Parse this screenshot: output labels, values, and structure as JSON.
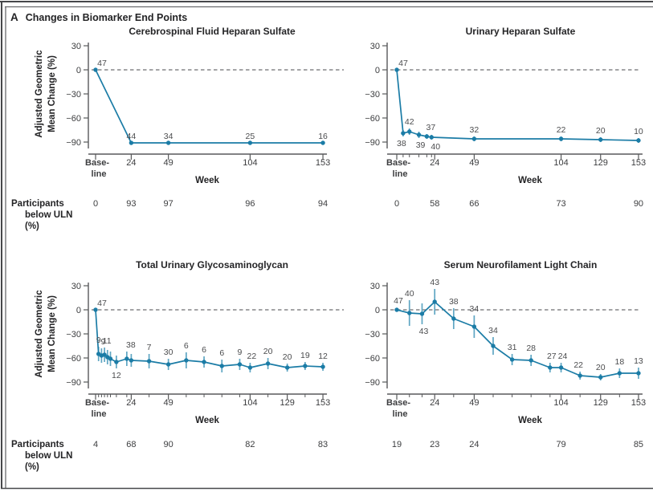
{
  "figure": {
    "panel_letter": "A",
    "title": "Changes in Biomarker End Points"
  },
  "colors": {
    "series_line": "#1b7ca6",
    "error_bar": "#5fa6c3",
    "dashed_zero_line": "#6d6e71",
    "axis": "#58595b",
    "text": "#2d2d2f"
  },
  "axis_labels": {
    "y_line1": "Adjusted Geometric",
    "y_line2": "Mean Change (%)",
    "x": "Week",
    "baseline_lines": [
      "Base-",
      "line"
    ]
  },
  "participants_label_lines": [
    "Participants",
    "below ULN",
    "(%)"
  ],
  "chart_data": [
    {
      "type": "line",
      "title": "Cerebrospinal Fluid Heparan Sulfate",
      "xlabel": "Week",
      "ylabel": "Adjusted Geometric Mean Change (%)",
      "ylim": [
        -90,
        30
      ],
      "y_ticks": [
        30,
        0,
        -30,
        -60,
        -90
      ],
      "x_major_ticks": [
        {
          "week": 0,
          "label": "Base-line"
        },
        {
          "week": 24,
          "label": "24"
        },
        {
          "week": 49,
          "label": "49"
        },
        {
          "week": 104,
          "label": "104"
        },
        {
          "week": 153,
          "label": "153"
        }
      ],
      "x_minor_tick_weeks": [],
      "points": [
        {
          "week": 0,
          "pct": 0,
          "n": "47",
          "n_pos": "above",
          "dx": 8
        },
        {
          "week": 24,
          "pct": -91,
          "n": "44",
          "n_pos": "above"
        },
        {
          "week": 49,
          "pct": -91,
          "n": "34",
          "n_pos": "above"
        },
        {
          "week": 104,
          "pct": -91,
          "n": "25",
          "n_pos": "above"
        },
        {
          "week": 153,
          "pct": -91,
          "n": "16",
          "n_pos": "above"
        }
      ],
      "participants_below_uln_pct": [
        {
          "week": 0,
          "value": "0"
        },
        {
          "week": 24,
          "value": "93"
        },
        {
          "week": 49,
          "value": "97"
        },
        {
          "week": 104,
          "value": "96"
        },
        {
          "week": 153,
          "value": "94"
        }
      ]
    },
    {
      "type": "line",
      "title": "Urinary Heparan Sulfate",
      "xlabel": "Week",
      "ylabel": "Adjusted Geometric Mean Change (%)",
      "ylim": [
        -90,
        30
      ],
      "y_ticks": [
        30,
        0,
        -30,
        -60,
        -90
      ],
      "x_major_ticks": [
        {
          "week": 0,
          "label": "Base-line"
        },
        {
          "week": 24,
          "label": "24"
        },
        {
          "week": 49,
          "label": "49"
        },
        {
          "week": 104,
          "label": "104"
        },
        {
          "week": 129,
          "label": "129"
        },
        {
          "week": 153,
          "label": "153"
        }
      ],
      "x_minor_tick_weeks": [
        4,
        8,
        14,
        19,
        22
      ],
      "points": [
        {
          "week": 0,
          "pct": 0,
          "n": "47",
          "n_pos": "above",
          "dx": 8
        },
        {
          "week": 4,
          "pct": -79,
          "err": 4,
          "n": "38",
          "n_pos": "below",
          "dx": -2
        },
        {
          "week": 8,
          "pct": -77,
          "err": 4,
          "n": "42",
          "n_pos": "above"
        },
        {
          "week": 14,
          "pct": -81,
          "err": 4,
          "n": "39",
          "n_pos": "below",
          "dx": 2
        },
        {
          "week": 19,
          "pct": -83,
          "err": 3,
          "n": "37",
          "n_pos": "above",
          "dx": 5
        },
        {
          "week": 22,
          "pct": -84,
          "err": 3,
          "n": "40",
          "n_pos": "below",
          "dx": 5
        },
        {
          "week": 49,
          "pct": -86,
          "err": 3,
          "n": "32",
          "n_pos": "above"
        },
        {
          "week": 104,
          "pct": -86,
          "err": 3,
          "n": "22",
          "n_pos": "above"
        },
        {
          "week": 129,
          "pct": -87,
          "err": 3,
          "n": "20",
          "n_pos": "above"
        },
        {
          "week": 153,
          "pct": -88,
          "err": 3,
          "n": "10",
          "n_pos": "above"
        }
      ],
      "participants_below_uln_pct": [
        {
          "week": 0,
          "value": "0"
        },
        {
          "week": 24,
          "value": "58"
        },
        {
          "week": 49,
          "value": "66"
        },
        {
          "week": 104,
          "value": "73"
        },
        {
          "week": 153,
          "value": "90"
        }
      ]
    },
    {
      "type": "line",
      "title": "Total Urinary Glycosaminoglycan",
      "xlabel": "Week",
      "ylabel": "Adjusted Geometric Mean Change (%)",
      "ylim": [
        -90,
        30
      ],
      "y_ticks": [
        30,
        0,
        -30,
        -60,
        -90
      ],
      "x_major_ticks": [
        {
          "week": 0,
          "label": "Base-line"
        },
        {
          "week": 24,
          "label": "24"
        },
        {
          "week": 49,
          "label": "49"
        },
        {
          "week": 104,
          "label": "104"
        },
        {
          "week": 129,
          "label": "129"
        },
        {
          "week": 153,
          "label": "153"
        }
      ],
      "x_minor_tick_weeks": [
        2,
        4,
        6,
        8,
        10,
        14,
        21,
        36,
        61,
        73,
        85,
        97,
        116,
        141
      ],
      "points": [
        {
          "week": 0,
          "pct": 0,
          "n": "47",
          "n_pos": "above",
          "dx": 8
        },
        {
          "week": 2,
          "pct": -55,
          "err": 9,
          "n": "9",
          "n_pos": "above"
        },
        {
          "week": 4,
          "pct": -57,
          "err": 9,
          "n": "9",
          "n_pos": "above",
          "dx": 2
        },
        {
          "week": 6,
          "pct": -56,
          "err": 9,
          "n": "11",
          "n_pos": "above",
          "dx": 3
        },
        {
          "week": 8,
          "pct": -59,
          "err": 9
        },
        {
          "week": 10,
          "pct": -61,
          "err": 9
        },
        {
          "week": 14,
          "pct": -65,
          "err": 8,
          "n": "12",
          "n_pos": "below"
        },
        {
          "week": 21,
          "pct": -61,
          "err": 9,
          "n": "38",
          "n_pos": "above",
          "dx": 5
        },
        {
          "week": 24,
          "pct": -63,
          "err": 8
        },
        {
          "week": 36,
          "pct": -64,
          "err": 9,
          "n": "7",
          "n_pos": "above"
        },
        {
          "week": 49,
          "pct": -68,
          "err": 7,
          "n": "30",
          "n_pos": "above"
        },
        {
          "week": 61,
          "pct": -63,
          "err": 10,
          "n": "6",
          "n_pos": "above"
        },
        {
          "week": 73,
          "pct": -65,
          "err": 7,
          "n": "6",
          "n_pos": "above"
        },
        {
          "week": 85,
          "pct": -70,
          "err": 8,
          "n": "6",
          "n_pos": "above"
        },
        {
          "week": 97,
          "pct": -68,
          "err": 7,
          "n": "9",
          "n_pos": "above"
        },
        {
          "week": 104,
          "pct": -72,
          "err": 6,
          "n": "22",
          "n_pos": "above",
          "dx": 2
        },
        {
          "week": 116,
          "pct": -67,
          "err": 7,
          "n": "20",
          "n_pos": "above"
        },
        {
          "week": 129,
          "pct": -72,
          "err": 5,
          "n": "20",
          "n_pos": "above"
        },
        {
          "week": 141,
          "pct": -70,
          "err": 5,
          "n": "19",
          "n_pos": "above"
        },
        {
          "week": 153,
          "pct": -71,
          "err": 5,
          "n": "12",
          "n_pos": "above"
        }
      ],
      "participants_below_uln_pct": [
        {
          "week": 0,
          "value": "4"
        },
        {
          "week": 24,
          "value": "68"
        },
        {
          "week": 49,
          "value": "90"
        },
        {
          "week": 104,
          "value": "82"
        },
        {
          "week": 153,
          "value": "83"
        }
      ]
    },
    {
      "type": "line",
      "title": "Serum Neurofilament Light Chain",
      "xlabel": "Week",
      "ylabel": "Adjusted Geometric Mean Change (%)",
      "ylim": [
        -90,
        30
      ],
      "y_ticks": [
        30,
        0,
        -30,
        -60,
        -90
      ],
      "x_major_ticks": [
        {
          "week": 0,
          "label": "Base-line"
        },
        {
          "week": 24,
          "label": "24"
        },
        {
          "week": 49,
          "label": "49"
        },
        {
          "week": 104,
          "label": "104"
        },
        {
          "week": 129,
          "label": "129"
        },
        {
          "week": 153,
          "label": "153"
        }
      ],
      "x_minor_tick_weeks": [
        8,
        16,
        36,
        61,
        73,
        85,
        97,
        116,
        141
      ],
      "points": [
        {
          "week": 0,
          "pct": 0,
          "n": "47",
          "n_pos": "above",
          "dx": 2,
          "dy": -3
        },
        {
          "week": 8,
          "pct": -4,
          "err": 16,
          "n": "40",
          "n_pos": "above"
        },
        {
          "week": 16,
          "pct": -5,
          "err": 13,
          "n": "43",
          "n_pos": "below",
          "dx": 2
        },
        {
          "week": 24,
          "pct": 10,
          "err": 16,
          "n": "43",
          "n_pos": "above"
        },
        {
          "week": 36,
          "pct": -11,
          "err": 13,
          "n": "38",
          "n_pos": "above"
        },
        {
          "week": 49,
          "pct": -21,
          "err": 14,
          "n": "34",
          "n_pos": "above"
        },
        {
          "week": 61,
          "pct": -45,
          "err": 11,
          "n": "34",
          "n_pos": "above"
        },
        {
          "week": 73,
          "pct": -62,
          "err": 7,
          "n": "31",
          "n_pos": "above"
        },
        {
          "week": 85,
          "pct": -63,
          "err": 7,
          "n": "28",
          "n_pos": "above"
        },
        {
          "week": 97,
          "pct": -72,
          "err": 6,
          "n": "27",
          "n_pos": "above",
          "dx": 2
        },
        {
          "week": 104,
          "pct": -72,
          "err": 6,
          "n": "24",
          "n_pos": "above",
          "dx": 2
        },
        {
          "week": 116,
          "pct": -82,
          "err": 5,
          "n": "22",
          "n_pos": "above",
          "dx": -2
        },
        {
          "week": 129,
          "pct": -84,
          "err": 4,
          "n": "20",
          "n_pos": "above"
        },
        {
          "week": 141,
          "pct": -79,
          "err": 6,
          "n": "18",
          "n_pos": "above"
        },
        {
          "week": 153,
          "pct": -79,
          "err": 7,
          "n": "13",
          "n_pos": "above"
        }
      ],
      "participants_below_uln_pct": [
        {
          "week": 0,
          "value": "19"
        },
        {
          "week": 24,
          "value": "23"
        },
        {
          "week": 49,
          "value": "24"
        },
        {
          "week": 104,
          "value": "79"
        },
        {
          "week": 153,
          "value": "85"
        }
      ]
    }
  ]
}
